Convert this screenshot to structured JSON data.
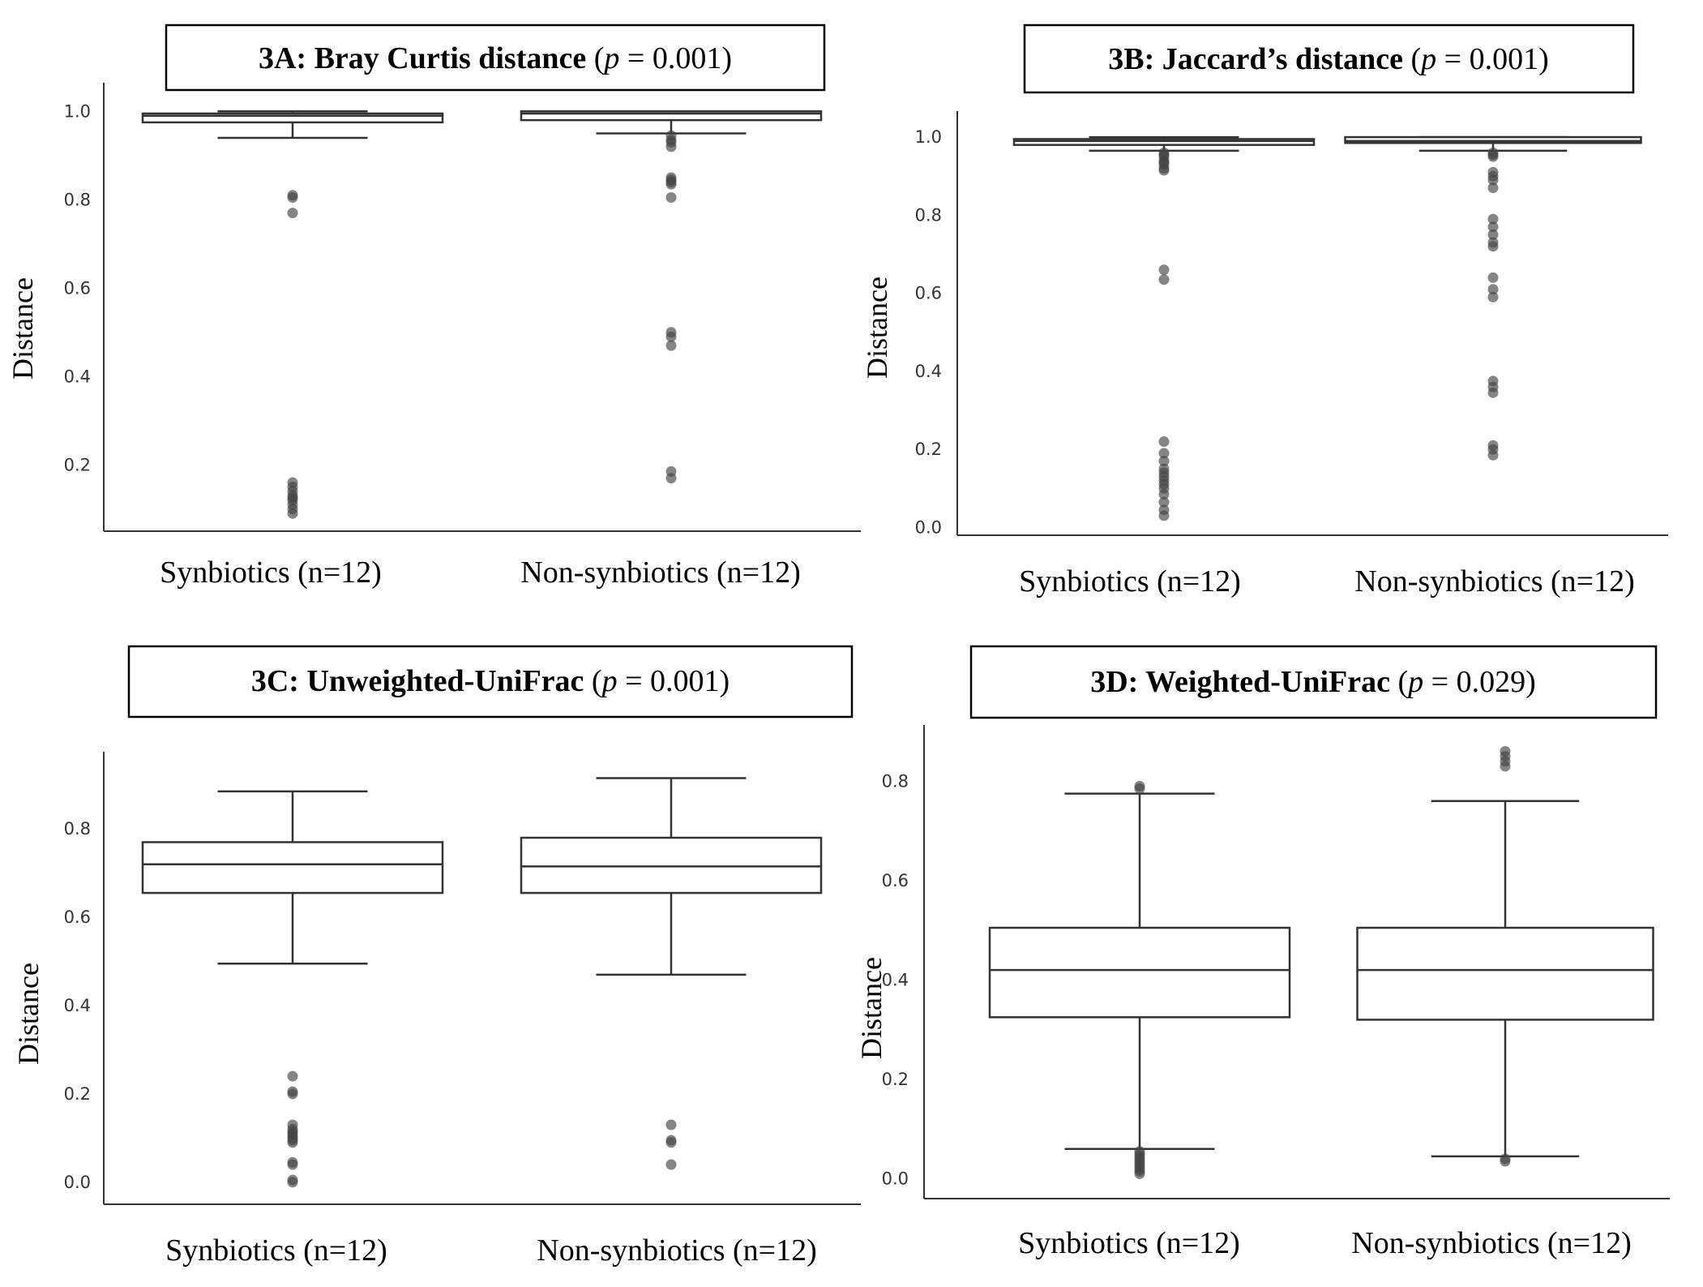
{
  "chart_data": [
    {
      "type": "box",
      "title_bold": "3A: Bray Curtis distance",
      "title_p_label": "p",
      "title_p_value": " = 0.001)",
      "ylabel": "Distance",
      "yticks": [
        "0.2",
        "0.4",
        "0.6",
        "0.8",
        "1.0"
      ],
      "ylim": [
        0.05,
        1.05
      ],
      "categories": [
        "Synbiotics (n=12)",
        "Non-synbiotics (n=12)"
      ],
      "boxes": [
        {
          "whislo": 0.94,
          "q1": 0.975,
          "med": 0.99,
          "q3": 0.995,
          "whishi": 1.0,
          "fliers": [
            0.81,
            0.805,
            0.77,
            0.16,
            0.15,
            0.14,
            0.13,
            0.125,
            0.12,
            0.11,
            0.1,
            0.09
          ]
        },
        {
          "whislo": 0.95,
          "q1": 0.98,
          "med": 0.995,
          "q3": 1.0,
          "whishi": 1.0,
          "fliers": [
            0.945,
            0.935,
            0.93,
            0.92,
            0.85,
            0.845,
            0.84,
            0.835,
            0.805,
            0.5,
            0.49,
            0.47,
            0.185,
            0.17
          ]
        }
      ]
    },
    {
      "type": "box",
      "title_bold": "3B: Jaccard’s distance",
      "title_p_label": "p",
      "title_p_value": " = 0.001)",
      "ylabel": "Distance",
      "yticks": [
        "0.0",
        "0.2",
        "0.4",
        "0.6",
        "0.8",
        "1.0"
      ],
      "ylim": [
        -0.02,
        1.05
      ],
      "categories": [
        "Synbiotics (n=12)",
        "Non-synbiotics (n=12)"
      ],
      "boxes": [
        {
          "whislo": 0.965,
          "q1": 0.98,
          "med": 0.99,
          "q3": 0.995,
          "whishi": 1.0,
          "fliers": [
            0.96,
            0.955,
            0.95,
            0.94,
            0.935,
            0.93,
            0.92,
            0.915,
            0.66,
            0.635,
            0.22,
            0.19,
            0.17,
            0.15,
            0.14,
            0.13,
            0.12,
            0.11,
            0.1,
            0.085,
            0.065,
            0.045,
            0.03
          ]
        },
        {
          "whislo": 0.965,
          "q1": 0.985,
          "med": 0.99,
          "q3": 1.0,
          "whishi": 1.0,
          "fliers": [
            0.96,
            0.955,
            0.95,
            0.91,
            0.9,
            0.89,
            0.87,
            0.79,
            0.77,
            0.75,
            0.73,
            0.72,
            0.64,
            0.61,
            0.59,
            0.375,
            0.36,
            0.345,
            0.21,
            0.2,
            0.185
          ]
        }
      ]
    },
    {
      "type": "box",
      "title_bold": "3C: Unweighted-UniFrac",
      "title_p_label": "p",
      "title_p_value": " = 0.001)",
      "ylabel": "Distance",
      "yticks": [
        "0.0",
        "0.2",
        "0.4",
        "0.6",
        "0.8"
      ],
      "ylim": [
        -0.05,
        0.96
      ],
      "categories": [
        "Synbiotics (n=12)",
        "Non-synbiotics (n=12)"
      ],
      "boxes": [
        {
          "whislo": 0.495,
          "q1": 0.655,
          "med": 0.72,
          "q3": 0.77,
          "whishi": 0.885,
          "fliers": [
            0.24,
            0.205,
            0.2,
            0.13,
            0.12,
            0.115,
            0.11,
            0.105,
            0.1,
            0.095,
            0.09,
            0.045,
            0.04,
            0.005,
            0.0
          ]
        },
        {
          "whislo": 0.47,
          "q1": 0.655,
          "med": 0.715,
          "q3": 0.78,
          "whishi": 0.915,
          "fliers": [
            0.13,
            0.095,
            0.09,
            0.04
          ]
        }
      ]
    },
    {
      "type": "box",
      "title_bold": "3D: Weighted-UniFrac",
      "title_p_label": "p",
      "title_p_value": " = 0.029)",
      "ylabel": "Distance",
      "yticks": [
        "0.0",
        "0.2",
        "0.4",
        "0.6",
        "0.8"
      ],
      "ylim": [
        -0.04,
        0.9
      ],
      "categories": [
        "Synbiotics (n=12)",
        "Non-synbiotics (n=12)"
      ],
      "boxes": [
        {
          "whislo": 0.06,
          "q1": 0.325,
          "med": 0.42,
          "q3": 0.505,
          "whishi": 0.775,
          "fliers": [
            0.79,
            0.785,
            0.055,
            0.05,
            0.045,
            0.04,
            0.035,
            0.03,
            0.025,
            0.02,
            0.015,
            0.01
          ]
        },
        {
          "whislo": 0.045,
          "q1": 0.32,
          "med": 0.42,
          "q3": 0.505,
          "whishi": 0.76,
          "fliers": [
            0.86,
            0.85,
            0.84,
            0.83,
            0.04,
            0.035
          ]
        }
      ]
    }
  ]
}
